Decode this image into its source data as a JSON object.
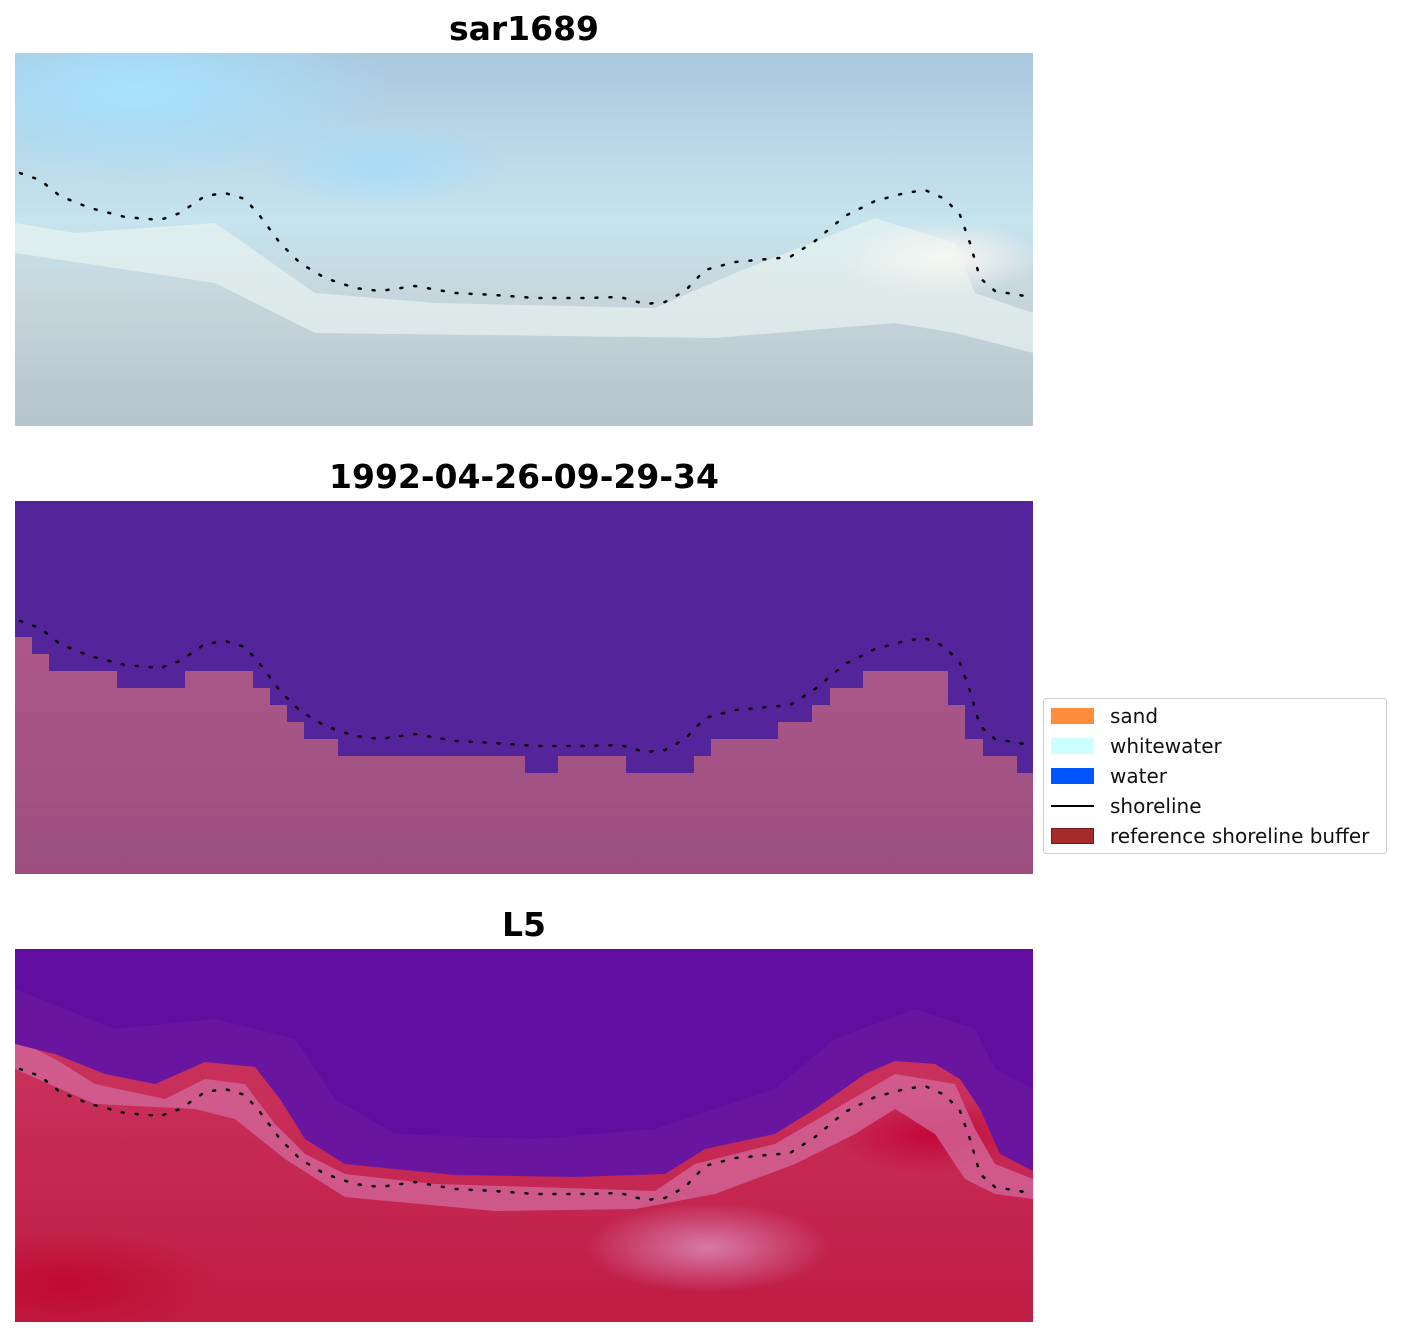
{
  "panels": [
    {
      "title": "sar1689"
    },
    {
      "title": "1992-04-26-09-29-34"
    },
    {
      "title": "L5"
    }
  ],
  "legend": {
    "items": [
      {
        "label": "sand",
        "color": "#ff8c3a",
        "kind": "patch"
      },
      {
        "label": "whitewater",
        "color": "#ccffff",
        "kind": "patch"
      },
      {
        "label": "water",
        "color": "#0055ff",
        "kind": "patch"
      },
      {
        "label": "shoreline",
        "color": "#000000",
        "kind": "line"
      },
      {
        "label": "reference shoreline buffer",
        "color": "#a52a2a",
        "kind": "patch-outlined"
      }
    ]
  },
  "colors": {
    "classified_water": "#54249a",
    "classified_land": "#a95080",
    "index_low": "#5a0aa0",
    "index_high": "#c8103a"
  }
}
